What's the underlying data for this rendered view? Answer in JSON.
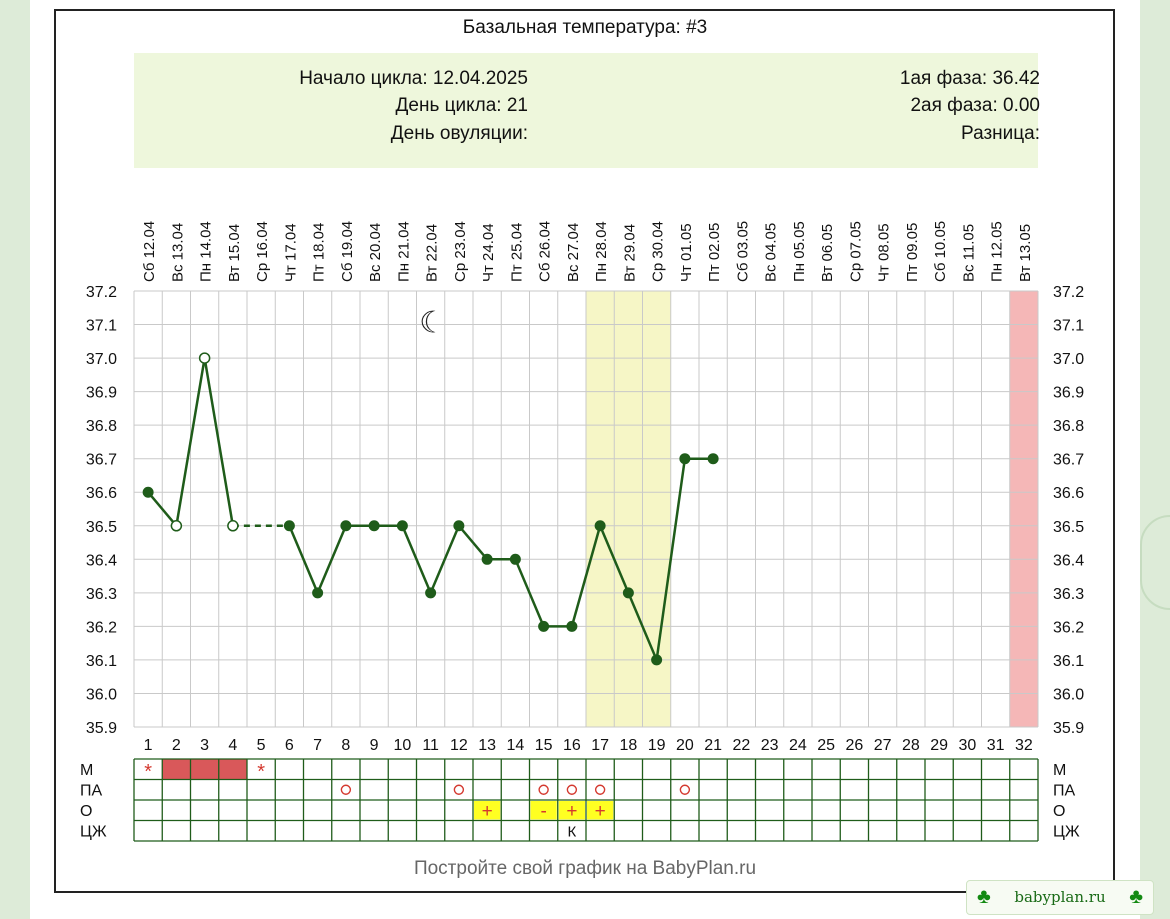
{
  "title": "Базальная температура: #3",
  "info": {
    "cycle_start": "Начало цикла: 12.04.2025",
    "cycle_day": "День цикла: 21",
    "ovulation_day": "День овуляции:",
    "phase1": "1ая фаза: 36.42",
    "phase2": "2ая фаза: 0.00",
    "difference": "Разница:"
  },
  "footer": "Постройте свой график на BabyPlan.ru",
  "brand": "babyplan.ru",
  "icons": {
    "brand": "clover-icon",
    "marker": "moon-icon"
  },
  "colors": {
    "line": "#1f5c1a",
    "grid": "#c9c9c9",
    "fertile_band": "#f6f6c6",
    "period_block": "#d9585a",
    "next_period": "#f5b7b7",
    "test_positive_bg": "#ffff22",
    "test_mark": "#d4392f"
  },
  "chart_data": {
    "type": "line",
    "title": "Базальная температура: #3",
    "y_range": [
      35.9,
      37.2
    ],
    "y_ticks": [
      "37.2",
      "37.1",
      "37.0",
      "36.9",
      "36.8",
      "36.7",
      "36.6",
      "36.5",
      "36.4",
      "36.3",
      "36.2",
      "36.1",
      "36.0",
      "35.9"
    ],
    "days": [
      1,
      2,
      3,
      4,
      5,
      6,
      7,
      8,
      9,
      10,
      11,
      12,
      13,
      14,
      15,
      16,
      17,
      18,
      19,
      20,
      21,
      22,
      23,
      24,
      25,
      26,
      27,
      28,
      29,
      30,
      31,
      32
    ],
    "dates": [
      "Сб 12.04",
      "Вс 13.04",
      "Пн 14.04",
      "Вт 15.04",
      "Ср 16.04",
      "Чт 17.04",
      "Пт 18.04",
      "Сб 19.04",
      "Вс 20.04",
      "Пн 21.04",
      "Вт 22.04",
      "Ср 23.04",
      "Чт 24.04",
      "Пт 25.04",
      "Сб 26.04",
      "Вс 27.04",
      "Пн 28.04",
      "Вт 29.04",
      "Ср 30.04",
      "Чт 01.05",
      "Пт 02.05",
      "Сб 03.05",
      "Вс 04.05",
      "Пн 05.05",
      "Вт 06.05",
      "Ср 07.05",
      "Чт 08.05",
      "Пт 09.05",
      "Сб 10.05",
      "Вс 11.05",
      "Пн 12.05",
      "Вт 13.05"
    ],
    "temperatures": [
      {
        "day": 1,
        "value": 36.6,
        "marker": "filled"
      },
      {
        "day": 2,
        "value": 36.5,
        "marker": "open"
      },
      {
        "day": 3,
        "value": 37.0,
        "marker": "open"
      },
      {
        "day": 4,
        "value": 36.5,
        "marker": "open"
      },
      {
        "day": 6,
        "value": 36.5,
        "marker": "filled"
      },
      {
        "day": 7,
        "value": 36.3,
        "marker": "filled"
      },
      {
        "day": 8,
        "value": 36.5,
        "marker": "filled"
      },
      {
        "day": 9,
        "value": 36.5,
        "marker": "filled"
      },
      {
        "day": 10,
        "value": 36.5,
        "marker": "filled"
      },
      {
        "day": 11,
        "value": 36.3,
        "marker": "filled"
      },
      {
        "day": 12,
        "value": 36.5,
        "marker": "filled"
      },
      {
        "day": 13,
        "value": 36.4,
        "marker": "filled"
      },
      {
        "day": 14,
        "value": 36.4,
        "marker": "filled"
      },
      {
        "day": 15,
        "value": 36.2,
        "marker": "filled"
      },
      {
        "day": 16,
        "value": 36.2,
        "marker": "filled"
      },
      {
        "day": 17,
        "value": 36.5,
        "marker": "filled"
      },
      {
        "day": 18,
        "value": 36.3,
        "marker": "filled"
      },
      {
        "day": 19,
        "value": 36.1,
        "marker": "filled"
      },
      {
        "day": 20,
        "value": 36.7,
        "marker": "filled"
      },
      {
        "day": 21,
        "value": 36.7,
        "marker": "filled"
      }
    ],
    "dashed_gap": [
      4,
      6
    ],
    "fertile_window": [
      17,
      19
    ],
    "next_period_day": 32,
    "moon_day": 11,
    "rows": {
      "labels": [
        "М",
        "ПА",
        "О",
        "ЦЖ"
      ],
      "menstruation": [
        {
          "day": 1,
          "mark": "*"
        },
        {
          "day": 2,
          "mark": "block"
        },
        {
          "day": 3,
          "mark": "block"
        },
        {
          "day": 4,
          "mark": "block"
        },
        {
          "day": 5,
          "mark": "*"
        }
      ],
      "intercourse": [
        {
          "day": 8,
          "mark": "o"
        },
        {
          "day": 12,
          "mark": "o"
        },
        {
          "day": 15,
          "mark": "o"
        },
        {
          "day": 16,
          "mark": "o"
        },
        {
          "day": 17,
          "mark": "o"
        },
        {
          "day": 20,
          "mark": "o"
        }
      ],
      "ovulation_test": [
        {
          "day": 13,
          "mark": "+"
        },
        {
          "day": 15,
          "mark": "-"
        },
        {
          "day": 16,
          "mark": "+"
        },
        {
          "day": 17,
          "mark": "+"
        }
      ],
      "cervical_mucus": [
        {
          "day": 16,
          "mark": "К"
        }
      ]
    }
  }
}
